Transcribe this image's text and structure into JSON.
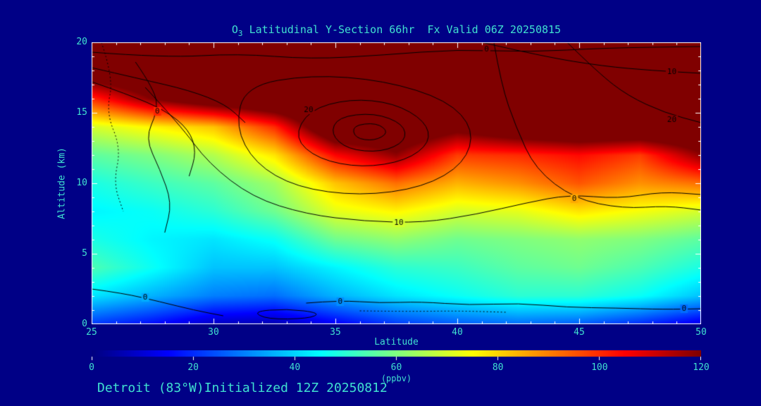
{
  "colors": {
    "background": "#000086",
    "text": "#40E0D0",
    "frame": "#FFFFFF",
    "contour": "#000000"
  },
  "title": {
    "prefix": "O",
    "sub": "3",
    "rest": " Latitudinal Y-Section 66hr  Fx Valid 06Z 20250815"
  },
  "footer": {
    "station": "Detroit (83°W)",
    "init": "Initialized 12Z 20250812"
  },
  "axes": {
    "x_label": "Latitude",
    "y_label": "Altitude (km)",
    "x_range": [
      25,
      50
    ],
    "y_range": [
      0,
      20
    ],
    "x_ticks": [
      25,
      30,
      35,
      40,
      45,
      50
    ],
    "y_ticks": [
      0,
      5,
      10,
      15,
      20
    ],
    "x_minor_step": 1,
    "y_minor_step": 1
  },
  "colorbar": {
    "label": "(ppbv)",
    "ticks": [
      0,
      20,
      40,
      60,
      80,
      100,
      120
    ],
    "range": [
      0,
      120
    ]
  },
  "chart_data": {
    "type": "heatmap",
    "title": "O3 Latitudinal Y-Section 66hr  Fx Valid 06Z 20250815",
    "xlabel": "Latitude",
    "ylabel": "Altitude (km)",
    "units": "ppbv",
    "colormap": "jet",
    "zlim": [
      0,
      120
    ],
    "x_latitudes": [
      25,
      27.5,
      30,
      32.5,
      35,
      37.5,
      40,
      42.5,
      45,
      47.5,
      50
    ],
    "y_altitudes_km": [
      20,
      18,
      16,
      14,
      12,
      10,
      8,
      6,
      4,
      2,
      0
    ],
    "values_ppbv": [
      [
        140,
        140,
        140,
        140,
        140,
        140,
        140,
        140,
        140,
        140,
        140
      ],
      [
        132,
        138,
        140,
        140,
        140,
        140,
        140,
        140,
        140,
        140,
        140
      ],
      [
        100,
        120,
        132,
        138,
        140,
        140,
        140,
        140,
        140,
        140,
        140
      ],
      [
        70,
        76,
        82,
        100,
        138,
        136,
        125,
        134,
        138,
        138,
        138
      ],
      [
        56,
        60,
        66,
        78,
        105,
        118,
        98,
        100,
        104,
        98,
        118
      ],
      [
        48,
        52,
        56,
        64,
        82,
        92,
        84,
        88,
        95,
        88,
        92
      ],
      [
        44,
        46,
        50,
        58,
        72,
        76,
        70,
        72,
        78,
        74,
        70
      ],
      [
        48,
        44,
        42,
        46,
        58,
        62,
        58,
        60,
        62,
        60,
        56
      ],
      [
        54,
        46,
        38,
        38,
        44,
        50,
        52,
        56,
        58,
        54,
        48
      ],
      [
        42,
        36,
        30,
        28,
        36,
        42,
        46,
        50,
        50,
        46,
        38
      ],
      [
        22,
        16,
        8,
        6,
        14,
        22,
        26,
        28,
        26,
        20,
        12
      ]
    ],
    "contour_overlay": {
      "line_color": "#000000",
      "lines": [
        {
          "style": "dotted",
          "labels": [],
          "points": [
            [
              25.4,
              20
            ],
            [
              25.9,
              17.5
            ],
            [
              25.6,
              15
            ],
            [
              26.2,
              12.5
            ],
            [
              25.9,
              10
            ],
            [
              26.3,
              8
            ]
          ]
        },
        {
          "style": "solid",
          "labels": [
            {
              "text": "0",
              "pos": [
                41.2,
                19.5
              ]
            }
          ],
          "points": [
            [
              25,
              19.3
            ],
            [
              28,
              18.9
            ],
            [
              31,
              19.2
            ],
            [
              34,
              18.8
            ],
            [
              37,
              19.1
            ],
            [
              40,
              19.5
            ],
            [
              43,
              19.3
            ],
            [
              46,
              19.6
            ],
            [
              50,
              19.7
            ]
          ]
        },
        {
          "style": "solid",
          "labels": [
            {
              "text": "0",
              "pos": [
                27.7,
                15.1
              ]
            }
          ],
          "points": [
            [
              26.8,
              18.6
            ],
            [
              27.6,
              16.6
            ],
            [
              27.7,
              15.1
            ],
            [
              27.2,
              13.2
            ],
            [
              27.8,
              11.0
            ],
            [
              28.3,
              8.6
            ],
            [
              28.0,
              6.5
            ]
          ]
        },
        {
          "style": "solid",
          "labels": [],
          "points": [
            [
              25,
              18.2
            ],
            [
              27,
              17.4
            ],
            [
              29,
              16.6
            ],
            [
              30.5,
              15.6
            ],
            [
              31.3,
              14.3
            ]
          ]
        },
        {
          "style": "solid",
          "labels": [],
          "points": [
            [
              25,
              17.2
            ],
            [
              26.5,
              16.3
            ],
            [
              28,
              15.2
            ],
            [
              29,
              13.8
            ],
            [
              29.3,
              12.2
            ],
            [
              29,
              10.5
            ]
          ]
        },
        {
          "style": "solid",
          "labels": [
            {
              "text": "20",
              "pos": [
                33.9,
                15.2
              ]
            }
          ],
          "points": [
            [
              33.9,
              15.2
            ],
            [
              35.6,
              16.0
            ],
            [
              37.4,
              15.7
            ],
            [
              38.7,
              14.4
            ],
            [
              38.9,
              12.9
            ],
            [
              37.9,
              11.6
            ],
            [
              36.1,
              11.1
            ],
            [
              34.3,
              11.7
            ],
            [
              33.3,
              13.2
            ],
            [
              33.9,
              15.2
            ]
          ]
        },
        {
          "style": "solid",
          "labels": [],
          "points": [
            [
              35.1,
              14.7
            ],
            [
              36.6,
              15.0
            ],
            [
              37.8,
              14.2
            ],
            [
              37.9,
              13.0
            ],
            [
              36.9,
              12.2
            ],
            [
              35.5,
              12.4
            ],
            [
              34.8,
              13.5
            ],
            [
              35.1,
              14.7
            ]
          ]
        },
        {
          "style": "solid",
          "labels": [],
          "points": [
            [
              35.7,
              14.1
            ],
            [
              36.7,
              14.3
            ],
            [
              37.2,
              13.6
            ],
            [
              36.6,
              13.0
            ],
            [
              35.8,
              13.2
            ],
            [
              35.7,
              14.1
            ]
          ]
        },
        {
          "style": "solid",
          "labels": [],
          "points": [
            [
              31.3,
              16.9
            ],
            [
              34,
              17.7
            ],
            [
              37,
              17.3
            ],
            [
              39.6,
              15.9
            ],
            [
              40.7,
              13.8
            ],
            [
              40.3,
              11.4
            ],
            [
              38.6,
              9.7
            ],
            [
              36,
              9.1
            ],
            [
              33.4,
              9.7
            ],
            [
              31.7,
              11.4
            ],
            [
              30.9,
              14.0
            ],
            [
              31.3,
              16.9
            ]
          ]
        },
        {
          "style": "solid",
          "labels": [
            {
              "text": "10",
              "pos": [
                37.6,
                7.2
              ]
            }
          ],
          "points": [
            [
              27.2,
              16.8
            ],
            [
              28.6,
              14.2
            ],
            [
              29.8,
              11.4
            ],
            [
              31.6,
              9.0
            ],
            [
              33.8,
              7.8
            ],
            [
              36.2,
              7.3
            ],
            [
              38.6,
              7.2
            ],
            [
              40.8,
              7.8
            ],
            [
              42.8,
              8.6
            ],
            [
              44.6,
              9.2
            ],
            [
              46.6,
              8.9
            ],
            [
              48.4,
              9.4
            ],
            [
              50,
              9.2
            ]
          ]
        },
        {
          "style": "solid",
          "labels": [
            {
              "text": "0",
              "pos": [
                44.8,
                8.9
              ]
            }
          ],
          "points": [
            [
              41.5,
              20
            ],
            [
              41.8,
              17.0
            ],
            [
              42.4,
              14.0
            ],
            [
              43.2,
              11.0
            ],
            [
              44.8,
              8.9
            ],
            [
              46.8,
              8.2
            ],
            [
              48.6,
              8.4
            ],
            [
              50,
              8.1
            ]
          ]
        },
        {
          "style": "solid",
          "labels": [
            {
              "text": "10",
              "pos": [
                48.8,
                17.9
              ]
            }
          ],
          "points": [
            [
              41,
              20
            ],
            [
              43.5,
              19.0
            ],
            [
              46,
              18.3
            ],
            [
              48,
              18.0
            ],
            [
              50,
              17.8
            ]
          ]
        },
        {
          "style": "solid",
          "labels": [
            {
              "text": "20",
              "pos": [
                48.8,
                14.5
              ]
            }
          ],
          "points": [
            [
              44.5,
              20
            ],
            [
              45.8,
              17.8
            ],
            [
              47,
              16.2
            ],
            [
              48.5,
              15.0
            ],
            [
              50,
              14.3
            ]
          ]
        },
        {
          "style": "solid",
          "labels": [
            {
              "text": "0",
              "pos": [
                27.2,
                1.9
              ]
            }
          ],
          "points": [
            [
              25,
              2.5
            ],
            [
              26.3,
              2.2
            ],
            [
              27.8,
              1.6
            ],
            [
              29.2,
              1.0
            ],
            [
              30.4,
              0.6
            ]
          ]
        },
        {
          "style": "solid",
          "labels": [],
          "points": [
            [
              31.6,
              0.9
            ],
            [
              33.0,
              1.1
            ],
            [
              34.4,
              0.8
            ],
            [
              33.9,
              0.4
            ],
            [
              32.2,
              0.35
            ],
            [
              31.6,
              0.9
            ]
          ]
        },
        {
          "style": "solid",
          "labels": [
            {
              "text": "0",
              "pos": [
                35.2,
                1.6
              ]
            },
            {
              "text": "0",
              "pos": [
                49.3,
                1.1
              ]
            }
          ],
          "points": [
            [
              33.8,
              1.5
            ],
            [
              35.2,
              1.7
            ],
            [
              36.8,
              1.5
            ],
            [
              38.5,
              1.6
            ],
            [
              40.5,
              1.35
            ],
            [
              42.5,
              1.5
            ],
            [
              44.5,
              1.2
            ],
            [
              46.5,
              1.15
            ],
            [
              48.5,
              1.05
            ],
            [
              50,
              1.1
            ]
          ]
        },
        {
          "style": "dotted",
          "labels": [],
          "points": [
            [
              36,
              0.95
            ],
            [
              38,
              0.9
            ],
            [
              40,
              0.95
            ],
            [
              42,
              0.85
            ]
          ]
        }
      ]
    }
  }
}
